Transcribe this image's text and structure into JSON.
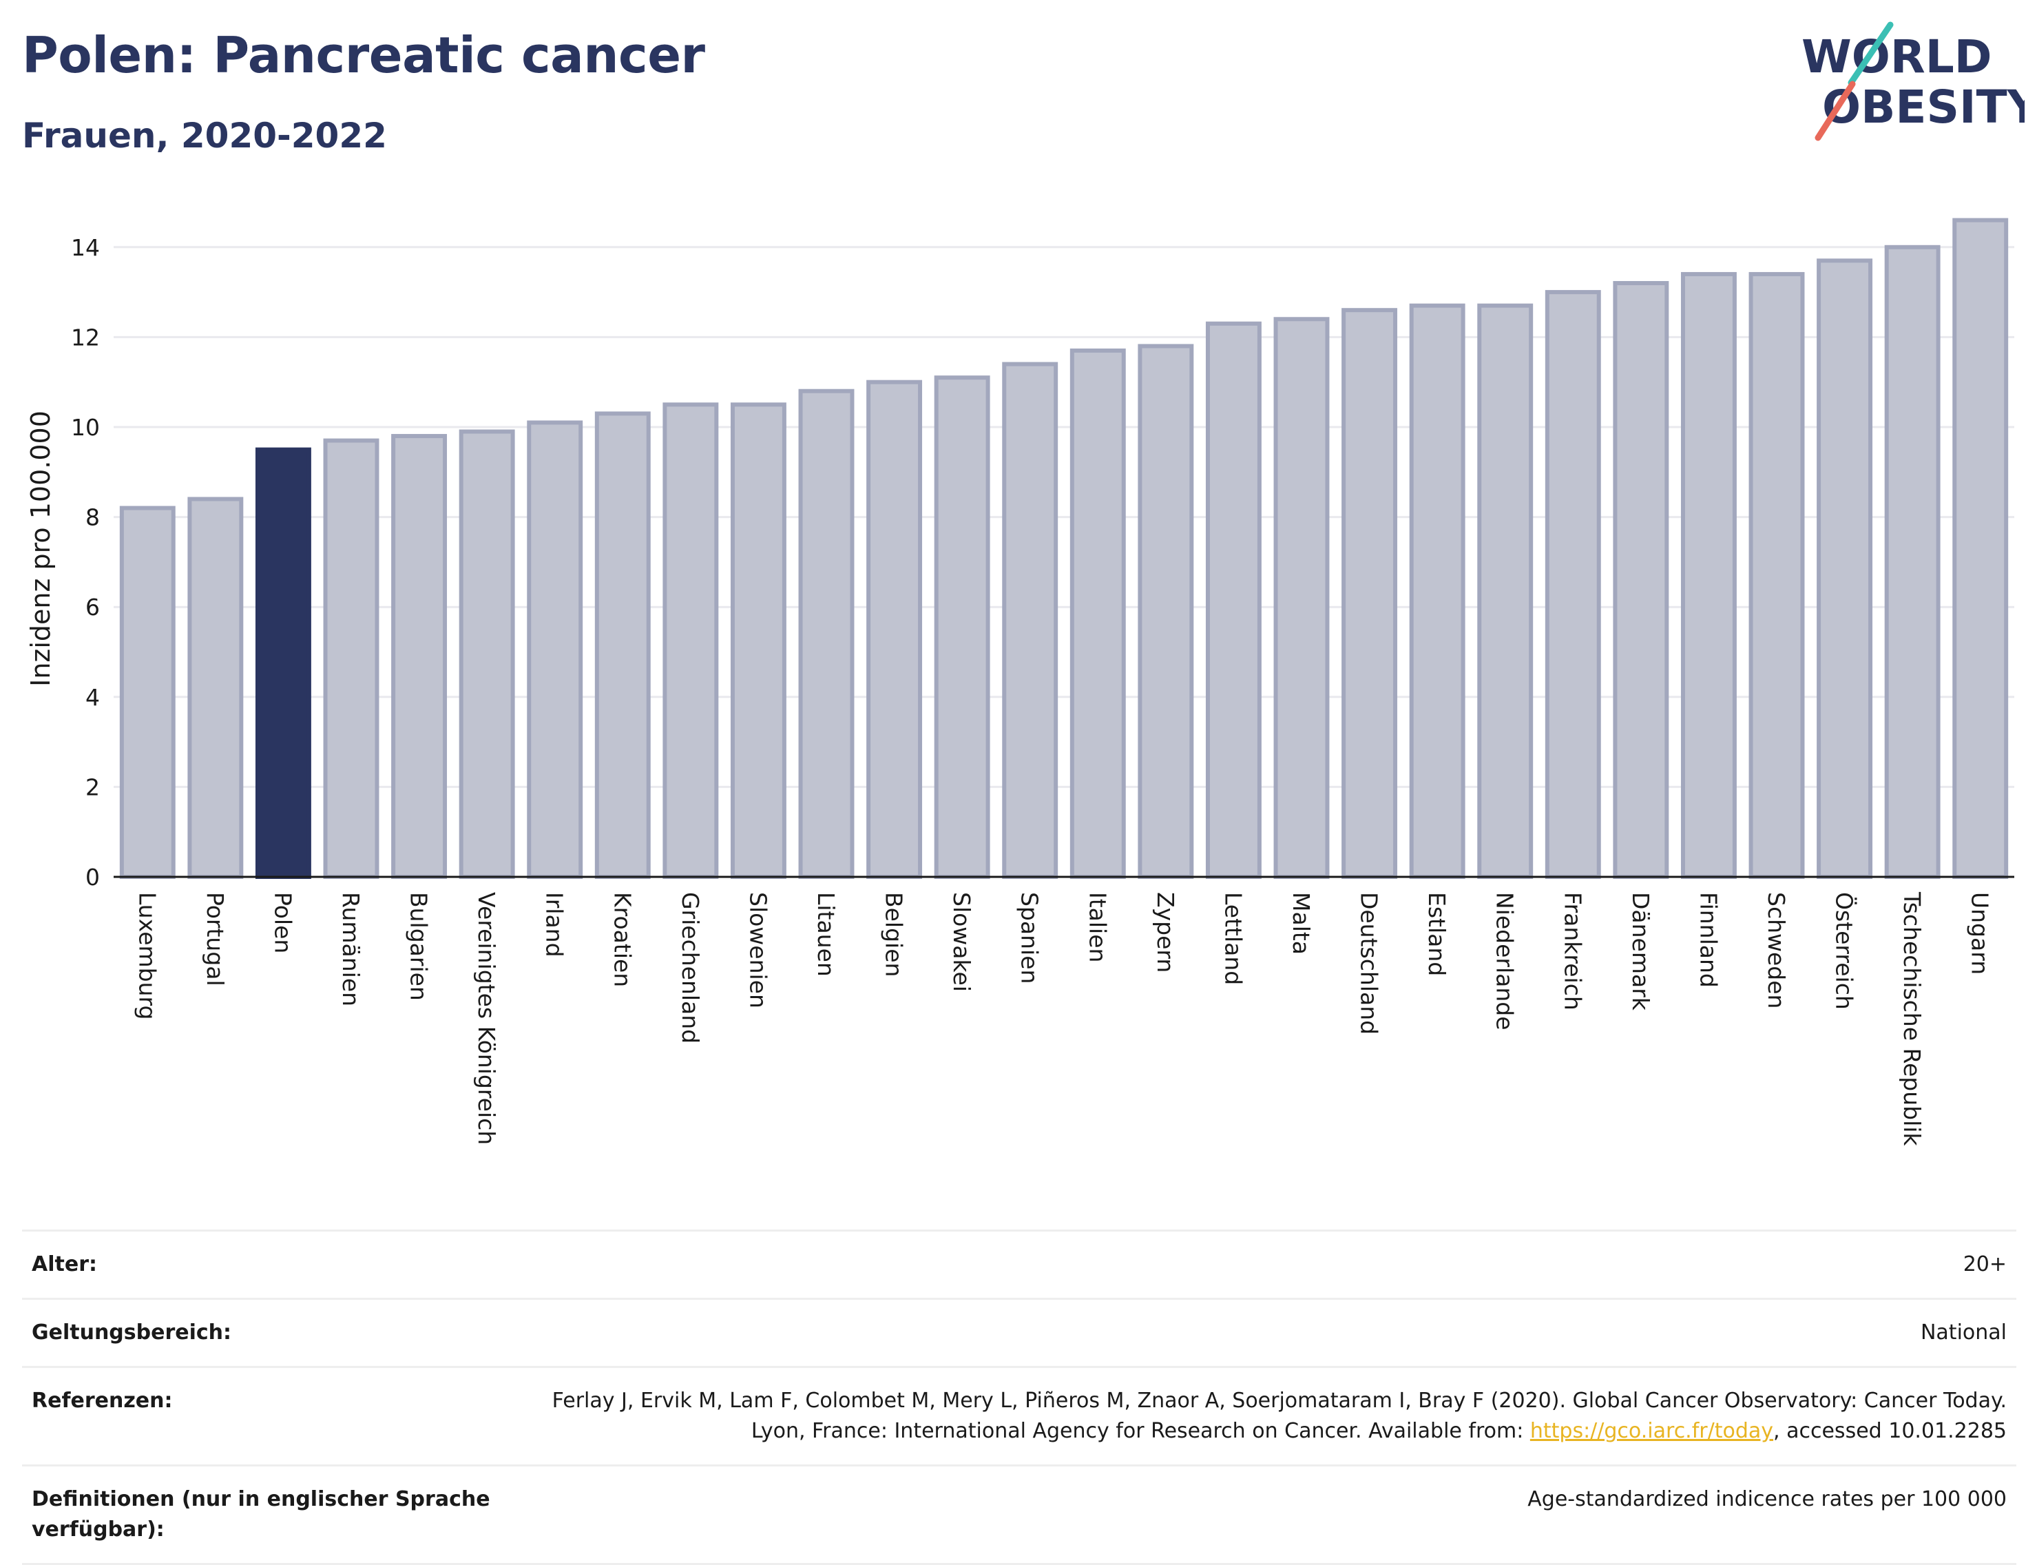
{
  "header": {
    "title": "Polen: Pancreatic cancer",
    "subtitle": "Frauen, 2020-2022"
  },
  "logo": {
    "line1": "WORLD",
    "line2": "OBESITY",
    "accent_teal": "#3bbfb4",
    "accent_coral": "#e8695a",
    "text_color": "#2a3560"
  },
  "chart_data": {
    "type": "bar",
    "ylabel": "Inzidenz pro 100.000",
    "xlabel": "",
    "ylim": [
      0,
      14.9
    ],
    "yticks": [
      0,
      2,
      4,
      6,
      8,
      10,
      12,
      14
    ],
    "grid": true,
    "highlight": "Polen",
    "colors": {
      "bar": "#c0c3d0",
      "bar_edge": "#a2a7bd",
      "highlight": "#2a3560"
    },
    "categories": [
      "Luxemburg",
      "Portugal",
      "Polen",
      "Rumänien",
      "Bulgarien",
      "Vereinigtes Königreich",
      "Irland",
      "Kroatien",
      "Griechenland",
      "Slowenien",
      "Litauen",
      "Belgien",
      "Slowakei",
      "Spanien",
      "Italien",
      "Zypern",
      "Lettland",
      "Malta",
      "Deutschland",
      "Estland",
      "Niederlande",
      "Frankreich",
      "Dänemark",
      "Finnland",
      "Schweden",
      "Österreich",
      "Tschechische Republik",
      "Ungarn"
    ],
    "values": [
      8.2,
      8.4,
      9.5,
      9.7,
      9.8,
      9.9,
      10.1,
      10.3,
      10.5,
      10.5,
      10.8,
      11.0,
      11.1,
      11.4,
      11.7,
      11.8,
      12.3,
      12.4,
      12.6,
      12.7,
      12.7,
      13.0,
      13.2,
      13.4,
      13.4,
      13.7,
      14.0,
      14.6
    ]
  },
  "info": {
    "rows": [
      {
        "key": "Alter:",
        "value": "20+"
      },
      {
        "key": "Geltungsbereich:",
        "value": "National"
      },
      {
        "key": "Referenzen:",
        "value_before": "Ferlay J, Ervik M, Lam F, Colombet M, Mery L, Piñeros M, Znaor A, Soerjomataram I, Bray F (2020). Global Cancer Observatory: Cancer Today. Lyon, France: International Agency for Research on Cancer. Available from: ",
        "link": "https://gco.iarc.fr/today",
        "value_after": ", accessed 10.01.2285"
      },
      {
        "key": "Definitionen (nur in englischer Sprache verfügbar):",
        "value": "Age-standardized indicence rates per 100 000"
      }
    ]
  }
}
